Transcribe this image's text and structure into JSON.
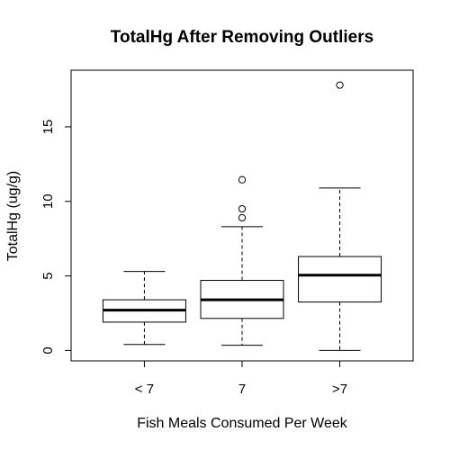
{
  "chart_data": {
    "type": "boxplot",
    "title": "TotalHg After Removing Outliers",
    "xlabel": "Fish Meals Consumed Per Week",
    "ylabel": "TotalHg (ug/g)",
    "ylim": [
      -0.7,
      18.8
    ],
    "y_ticks": [
      0,
      5,
      10,
      15
    ],
    "grid": false,
    "legend": "none",
    "categories": [
      "< 7",
      "7",
      ">7"
    ],
    "boxes": [
      {
        "category": "< 7",
        "whisker_low": 0.4,
        "q1": 1.9,
        "median": 2.7,
        "q3": 3.4,
        "whisker_high": 5.3,
        "outliers": []
      },
      {
        "category": "7",
        "whisker_low": 0.35,
        "q1": 2.15,
        "median": 3.4,
        "q3": 4.7,
        "whisker_high": 8.3,
        "outliers": [
          8.9,
          9.5,
          11.45
        ]
      },
      {
        "category": ">7",
        "whisker_low": 0.0,
        "q1": 3.25,
        "median": 5.05,
        "q3": 6.3,
        "whisker_high": 10.9,
        "outliers": [
          17.8
        ]
      }
    ],
    "colors": {
      "box_fill": "#ffffff",
      "stroke": "#000000"
    }
  }
}
